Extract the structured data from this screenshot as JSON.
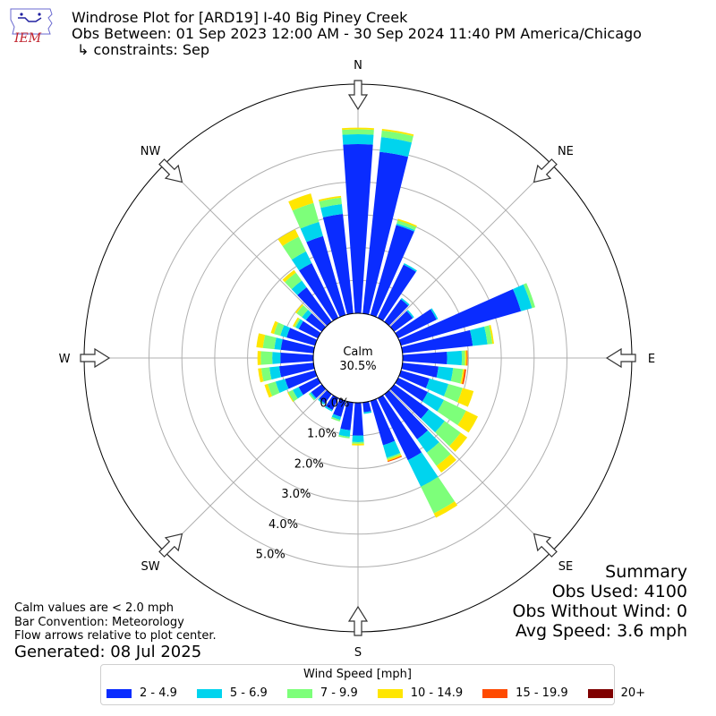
{
  "header": {
    "logo_text": "IEM",
    "title_line1": "Windrose Plot for [ARD19] I-40 Big Piney Creek",
    "title_line2": "Obs Between: 01 Sep 2023 12:00 AM - 30 Sep 2024 11:40 PM America/Chicago",
    "title_line3": "↳ constraints: Sep"
  },
  "notes": {
    "line1": "Calm values are < 2.0 mph",
    "line2": "Bar Convention: Meteorology",
    "line3": "Flow arrows relative to plot center.",
    "generated": "Generated: 08 Jul 2025"
  },
  "summary": {
    "title": "Summary",
    "obs_used": "Obs Used: 4100",
    "obs_without_wind": "Obs Without Wind: 0",
    "avg_speed": "Avg Speed: 3.6 mph"
  },
  "chart_data": {
    "type": "windrose",
    "calm_label": "Calm",
    "calm_value": "30.5%",
    "directions": [
      "N",
      "NE",
      "E",
      "SE",
      "S",
      "SW",
      "W",
      "NW"
    ],
    "radial_ticks": [
      "0.0%",
      "1.0%",
      "2.0%",
      "3.0%",
      "4.0%",
      "5.0%"
    ],
    "legend_title": "Wind Speed [mph]",
    "bins": [
      {
        "label": "2 - 4.9",
        "color": "#0a2cff"
      },
      {
        "label": "5 - 6.9",
        "color": "#00d4ee"
      },
      {
        "label": "7 - 9.9",
        "color": "#7dff7a"
      },
      {
        "label": "10 - 14.9",
        "color": "#ffe600"
      },
      {
        "label": "15 - 19.9",
        "color": "#ff4a00"
      },
      {
        "label": "20+",
        "color": "#7f0000"
      }
    ],
    "sectors": [
      {
        "dir": 0,
        "v": [
          5.15,
          0.3,
          0.15,
          0.05,
          0,
          0
        ]
      },
      {
        "dir": 10,
        "v": [
          4.95,
          0.45,
          0.2,
          0.05,
          0,
          0
        ]
      },
      {
        "dir": 20,
        "v": [
          2.85,
          0.05,
          0.1,
          0.05,
          0,
          0
        ]
      },
      {
        "dir": 30,
        "v": [
          1.8,
          0.05,
          0,
          0,
          0,
          0
        ]
      },
      {
        "dir": 40,
        "v": [
          0.85,
          0.05,
          0,
          0,
          0,
          0
        ]
      },
      {
        "dir": 50,
        "v": [
          0.7,
          0.05,
          0,
          0,
          0,
          0
        ]
      },
      {
        "dir": 60,
        "v": [
          1.3,
          0.05,
          0,
          0,
          0,
          0
        ]
      },
      {
        "dir": 70,
        "v": [
          3.8,
          0.35,
          0.1,
          0,
          0,
          0
        ]
      },
      {
        "dir": 80,
        "v": [
          2.15,
          0.45,
          0.15,
          0.05,
          0,
          0
        ]
      },
      {
        "dir": 90,
        "v": [
          1.35,
          0.45,
          0.1,
          0.05,
          0.03,
          0
        ]
      },
      {
        "dir": 100,
        "v": [
          1.1,
          0.45,
          0.3,
          0.05,
          0.05,
          0
        ]
      },
      {
        "dir": 110,
        "v": [
          0.9,
          0.6,
          0.45,
          0.35,
          0,
          0
        ]
      },
      {
        "dir": 120,
        "v": [
          1.0,
          0.55,
          0.75,
          0.4,
          0,
          0
        ]
      },
      {
        "dir": 130,
        "v": [
          1.3,
          0.6,
          0.6,
          0.25,
          0,
          0
        ]
      },
      {
        "dir": 140,
        "v": [
          1.7,
          0.5,
          0.5,
          0.25,
          0,
          0
        ]
      },
      {
        "dir": 150,
        "v": [
          2.1,
          0.9,
          0.9,
          0.15,
          0,
          0
        ]
      },
      {
        "dir": 160,
        "v": [
          1.4,
          0.4,
          0.05,
          0.05,
          0.03,
          0
        ]
      },
      {
        "dir": 170,
        "v": [
          0.3,
          0.05,
          0,
          0,
          0,
          0
        ]
      },
      {
        "dir": 180,
        "v": [
          1.0,
          0.2,
          0.05,
          0.05,
          0,
          0
        ]
      },
      {
        "dir": 190,
        "v": [
          0.85,
          0.2,
          0.05,
          0,
          0,
          0
        ]
      },
      {
        "dir": 200,
        "v": [
          0.5,
          0.1,
          0.05,
          0,
          0,
          0
        ]
      },
      {
        "dir": 210,
        "v": [
          0.4,
          0.05,
          0,
          0,
          0,
          0
        ]
      },
      {
        "dir": 220,
        "v": [
          0.35,
          0.05,
          0,
          0,
          0,
          0
        ]
      },
      {
        "dir": 230,
        "v": [
          0.4,
          0.05,
          0.05,
          0,
          0,
          0
        ]
      },
      {
        "dir": 240,
        "v": [
          0.65,
          0.2,
          0.15,
          0.03,
          0,
          0
        ]
      },
      {
        "dir": 250,
        "v": [
          0.95,
          0.3,
          0.25,
          0.1,
          0,
          0
        ]
      },
      {
        "dir": 260,
        "v": [
          1.05,
          0.3,
          0.25,
          0.1,
          0,
          0
        ]
      },
      {
        "dir": 270,
        "v": [
          1.0,
          0.25,
          0.35,
          0.1,
          0,
          0
        ]
      },
      {
        "dir": 280,
        "v": [
          1.0,
          0.2,
          0.35,
          0.2,
          0,
          0
        ]
      },
      {
        "dir": 290,
        "v": [
          0.9,
          0.2,
          0.2,
          0.1,
          0,
          0
        ]
      },
      {
        "dir": 300,
        "v": [
          0.65,
          0.1,
          0.05,
          0.05,
          0,
          0
        ]
      },
      {
        "dir": 310,
        "v": [
          0.6,
          0.15,
          0.2,
          0.05,
          0,
          0
        ]
      },
      {
        "dir": 320,
        "v": [
          1.3,
          0.25,
          0.3,
          0.1,
          0,
          0
        ]
      },
      {
        "dir": 330,
        "v": [
          1.85,
          0.4,
          0.5,
          0.25,
          0,
          0
        ]
      },
      {
        "dir": 340,
        "v": [
          2.5,
          0.45,
          0.6,
          0.3,
          0,
          0
        ]
      },
      {
        "dir": 350,
        "v": [
          3.05,
          0.3,
          0.2,
          0.05,
          0,
          0
        ]
      }
    ]
  }
}
